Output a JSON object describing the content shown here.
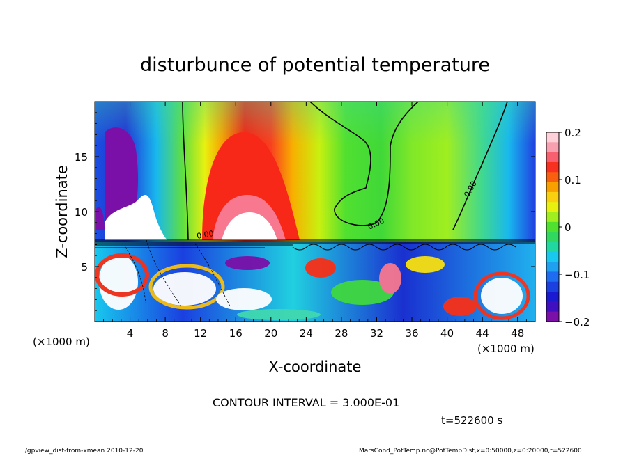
{
  "chart_data": {
    "type": "heatmap",
    "title": "disturbunce of potential temperature",
    "xlabel": "X-coordinate",
    "ylabel": "Z-coordinate",
    "x_unit": "(×1000 m)",
    "y_unit": "(×1000 m)",
    "xlim": [
      0,
      50
    ],
    "ylim": [
      0,
      20
    ],
    "x_ticks": [
      "4",
      "8",
      "12",
      "16",
      "20",
      "24",
      "28",
      "32",
      "36",
      "40",
      "44",
      "48"
    ],
    "y_ticks": [
      "5",
      "10",
      "15"
    ],
    "colorbar": {
      "range": [
        -0.2,
        0.2
      ],
      "ticks": [
        "0.2",
        "0.1",
        "0",
        "−0.1",
        "−0.2"
      ]
    },
    "contour_label": "0.00",
    "contour_interval": "CONTOUR INTERVAL = 3.000E-01",
    "time": "t=522600 s",
    "footer_left": "./gpview_dist-from-xmean   2010-12-20",
    "footer_right": "MarsCond_PotTemp.nc@PotTempDist,x=0:50000,z=0:20000,t=522600",
    "colors": {
      "scale": [
        "#7a10a8",
        "#1a1ad0",
        "#1e6cf0",
        "#19c8ee",
        "#2ee0b0",
        "#30d840",
        "#a8f010",
        "#f0f010",
        "#f8a000",
        "#f83010",
        "#f87890",
        "#ffc0c8",
        "#ffffff"
      ]
    }
  }
}
